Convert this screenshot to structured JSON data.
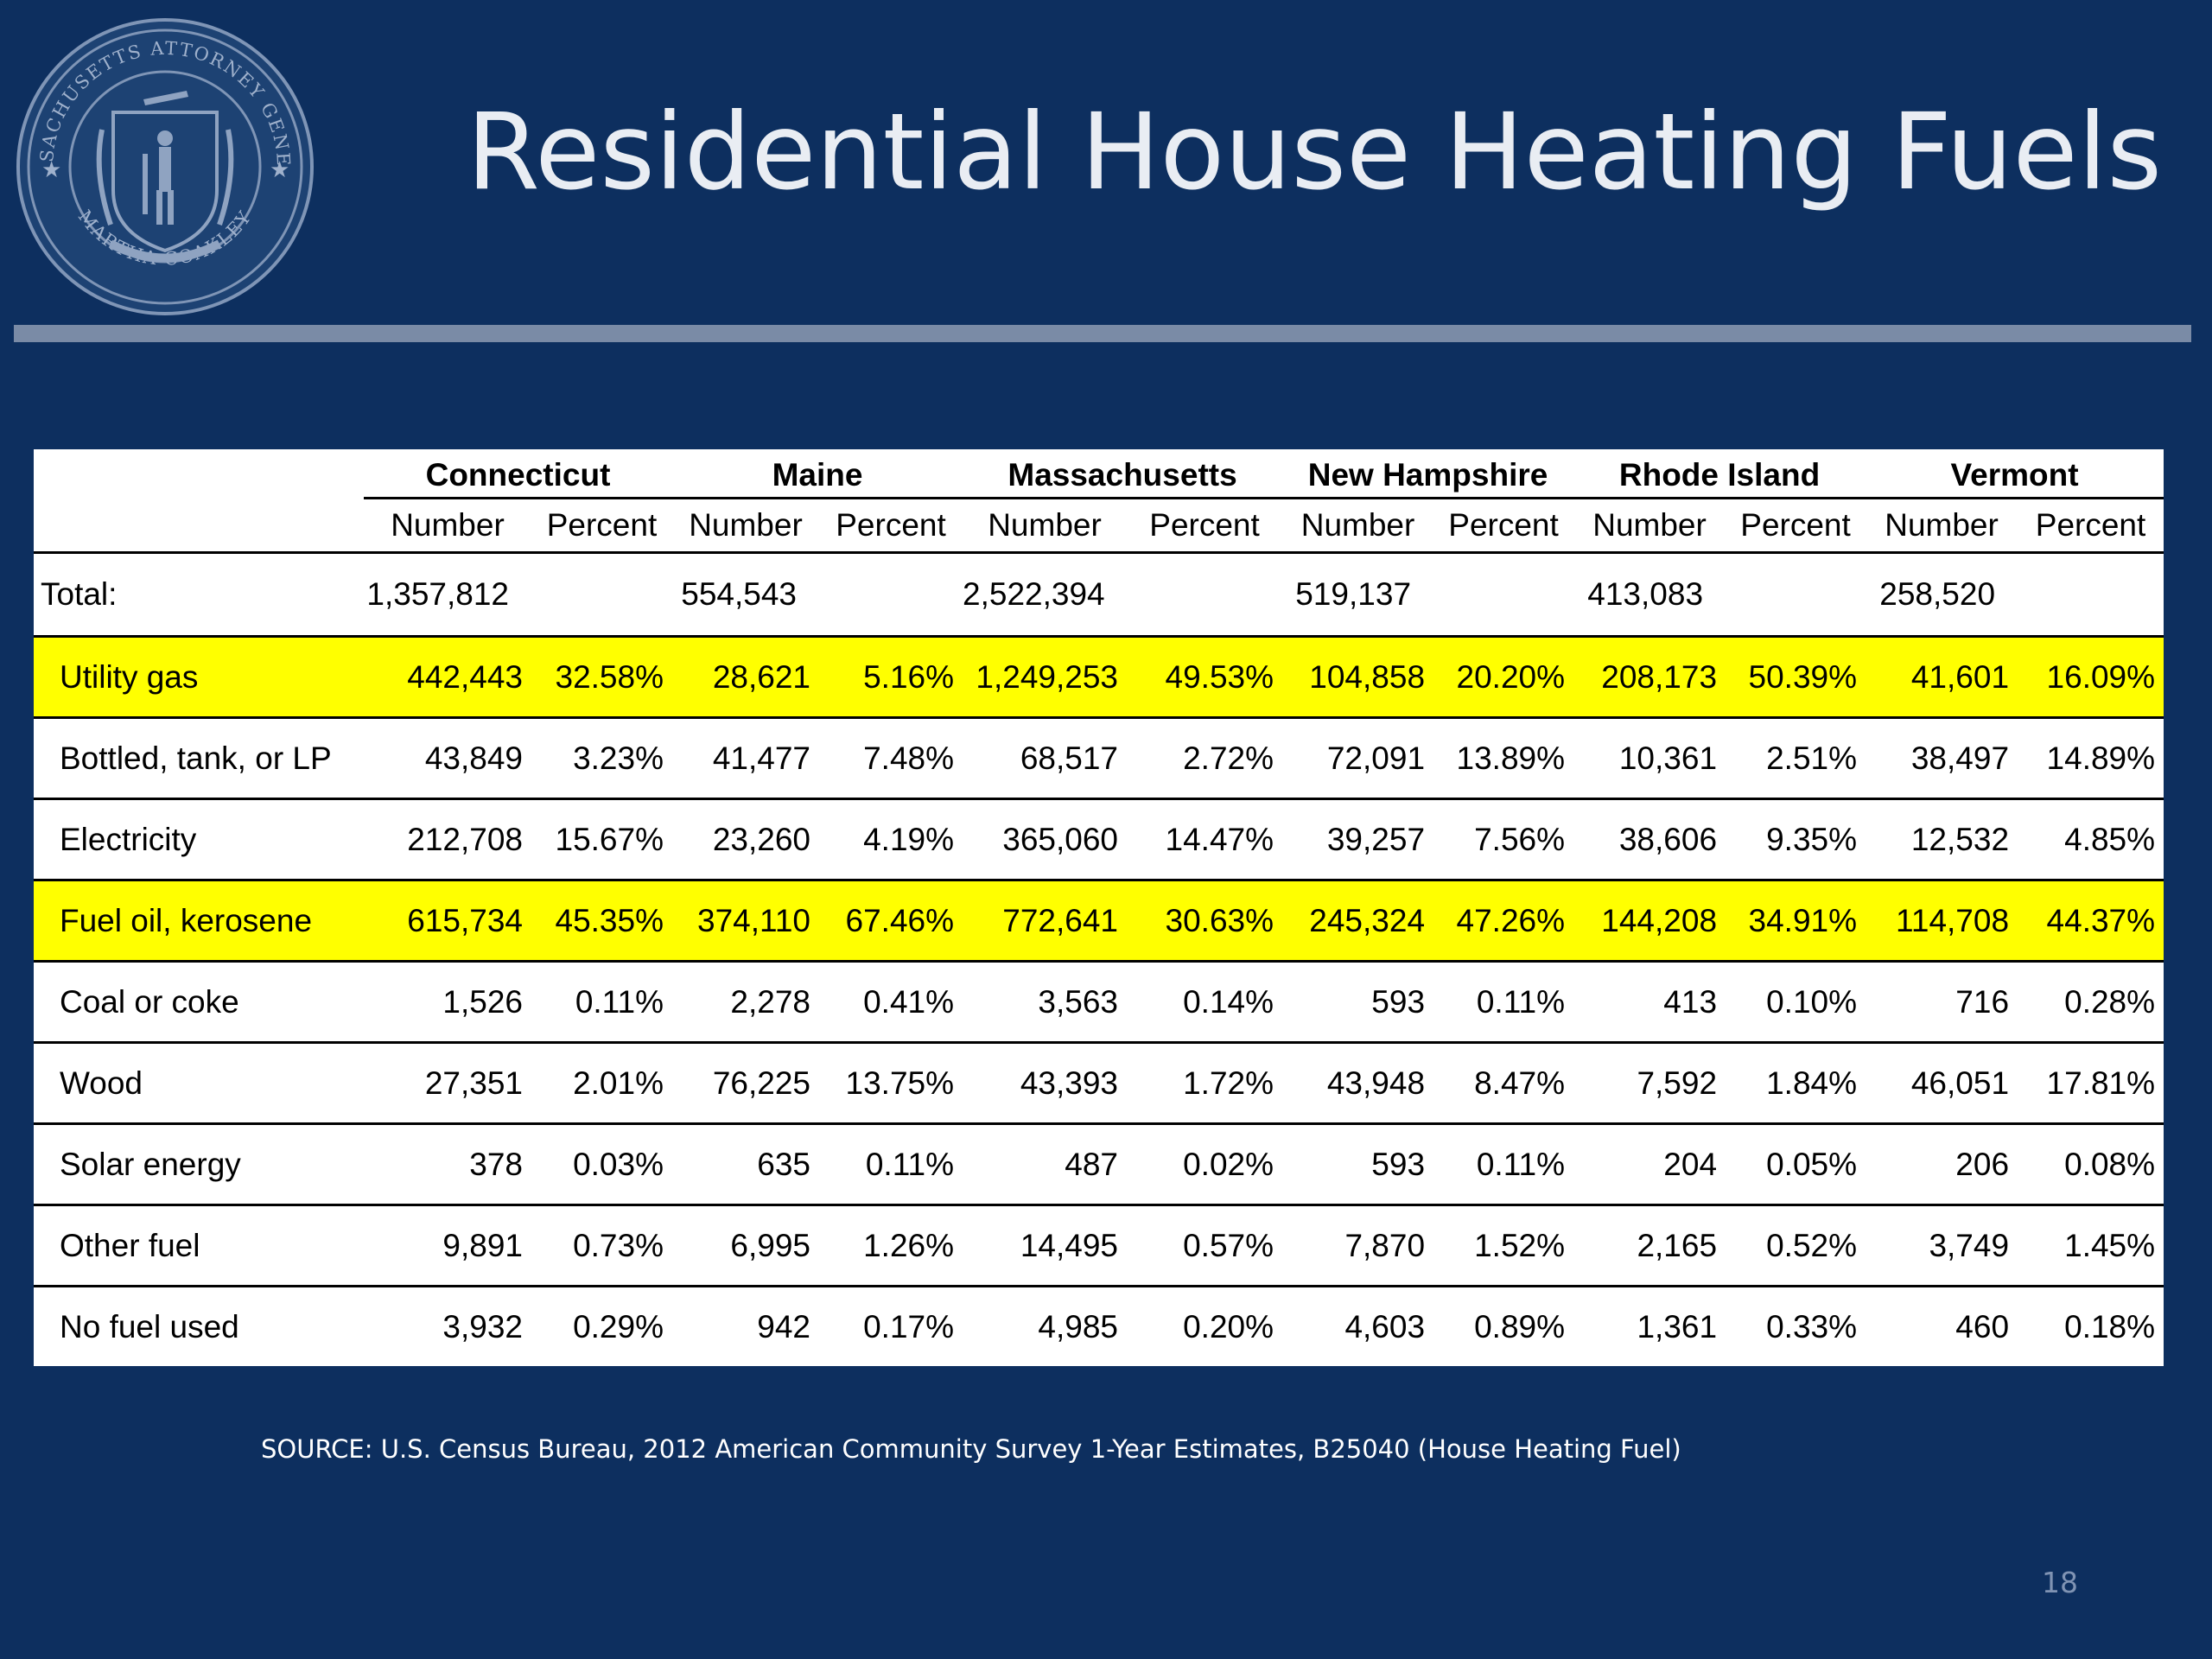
{
  "title": "Residential House Heating Fuels",
  "seal": {
    "text_top": "MASSACHUSETTS ATTORNEY GENERAL",
    "text_bottom": "MARTHA COAKLEY"
  },
  "table": {
    "states": [
      "Connecticut",
      "Maine",
      "Massachusetts",
      "New Hampshire",
      "Rhode Island",
      "Vermont"
    ],
    "number_label": "Number",
    "percent_label": "Percent",
    "total": {
      "label": "Total:",
      "values": [
        "1,357,812",
        "554,543",
        "2,522,394",
        "519,137",
        "413,083",
        "258,520"
      ]
    },
    "rows": [
      {
        "label": "Utility gas",
        "highlight": true,
        "cells": [
          "442,443",
          "32.58%",
          "28,621",
          "5.16%",
          "1,249,253",
          "49.53%",
          "104,858",
          "20.20%",
          "208,173",
          "50.39%",
          "41,601",
          "16.09%"
        ]
      },
      {
        "label": "Bottled, tank, or LP",
        "highlight": false,
        "cells": [
          "43,849",
          "3.23%",
          "41,477",
          "7.48%",
          "68,517",
          "2.72%",
          "72,091",
          "13.89%",
          "10,361",
          "2.51%",
          "38,497",
          "14.89%"
        ]
      },
      {
        "label": "Electricity",
        "highlight": false,
        "cells": [
          "212,708",
          "15.67%",
          "23,260",
          "4.19%",
          "365,060",
          "14.47%",
          "39,257",
          "7.56%",
          "38,606",
          "9.35%",
          "12,532",
          "4.85%"
        ]
      },
      {
        "label": "Fuel oil, kerosene",
        "highlight": true,
        "cells": [
          "615,734",
          "45.35%",
          "374,110",
          "67.46%",
          "772,641",
          "30.63%",
          "245,324",
          "47.26%",
          "144,208",
          "34.91%",
          "114,708",
          "44.37%"
        ]
      },
      {
        "label": "Coal or coke",
        "highlight": false,
        "cells": [
          "1,526",
          "0.11%",
          "2,278",
          "0.41%",
          "3,563",
          "0.14%",
          "593",
          "0.11%",
          "413",
          "0.10%",
          "716",
          "0.28%"
        ]
      },
      {
        "label": "Wood",
        "highlight": false,
        "cells": [
          "27,351",
          "2.01%",
          "76,225",
          "13.75%",
          "43,393",
          "1.72%",
          "43,948",
          "8.47%",
          "7,592",
          "1.84%",
          "46,051",
          "17.81%"
        ]
      },
      {
        "label": "Solar energy",
        "highlight": false,
        "cells": [
          "378",
          "0.03%",
          "635",
          "0.11%",
          "487",
          "0.02%",
          "593",
          "0.11%",
          "204",
          "0.05%",
          "206",
          "0.08%"
        ]
      },
      {
        "label": "Other fuel",
        "highlight": false,
        "cells": [
          "9,891",
          "0.73%",
          "6,995",
          "1.26%",
          "14,495",
          "0.57%",
          "7,870",
          "1.52%",
          "2,165",
          "0.52%",
          "3,749",
          "1.45%"
        ]
      },
      {
        "label": "No fuel used",
        "highlight": false,
        "cells": [
          "3,932",
          "0.29%",
          "942",
          "0.17%",
          "4,985",
          "0.20%",
          "4,603",
          "0.89%",
          "1,361",
          "0.33%",
          "460",
          "0.18%"
        ]
      }
    ]
  },
  "source": "SOURCE: U.S. Census Bureau, 2012 American Community Survey 1-Year Estimates, B25040 (House Heating Fuel)",
  "page_number": "18",
  "colors": {
    "background": "#0d2f5f",
    "highlight": "#ffff00",
    "rule": "#7a8ba6"
  }
}
